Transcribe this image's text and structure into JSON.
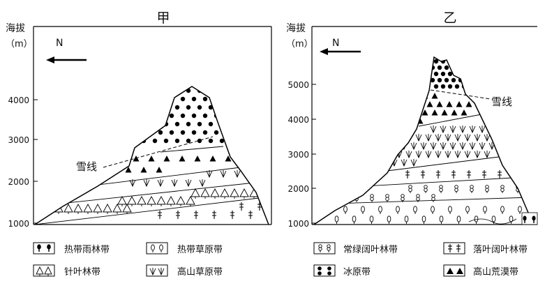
{
  "panels": [
    {
      "title": "甲",
      "altitude_label": "海拔",
      "unit_label": "（m）",
      "north_label": "N",
      "snowline_label": "雪线",
      "ticks": [
        "1000",
        "2000",
        "3000",
        "4000"
      ]
    },
    {
      "title": "乙",
      "altitude_label": "海拔",
      "unit_label": "（m）",
      "north_label": "N",
      "snowline_label": "雪线",
      "ticks": [
        "1000",
        "2000",
        "3000",
        "4000",
        "5000"
      ]
    }
  ],
  "legend": [
    {
      "label": "热带雨林带"
    },
    {
      "label": "热带草原带"
    },
    {
      "label": "常绿阔叶林带"
    },
    {
      "label": "落叶阔叶林带"
    },
    {
      "label": "针叶林带"
    },
    {
      "label": "高山草原带"
    },
    {
      "label": "冰原带"
    },
    {
      "label": "高山荒漠带"
    }
  ]
}
